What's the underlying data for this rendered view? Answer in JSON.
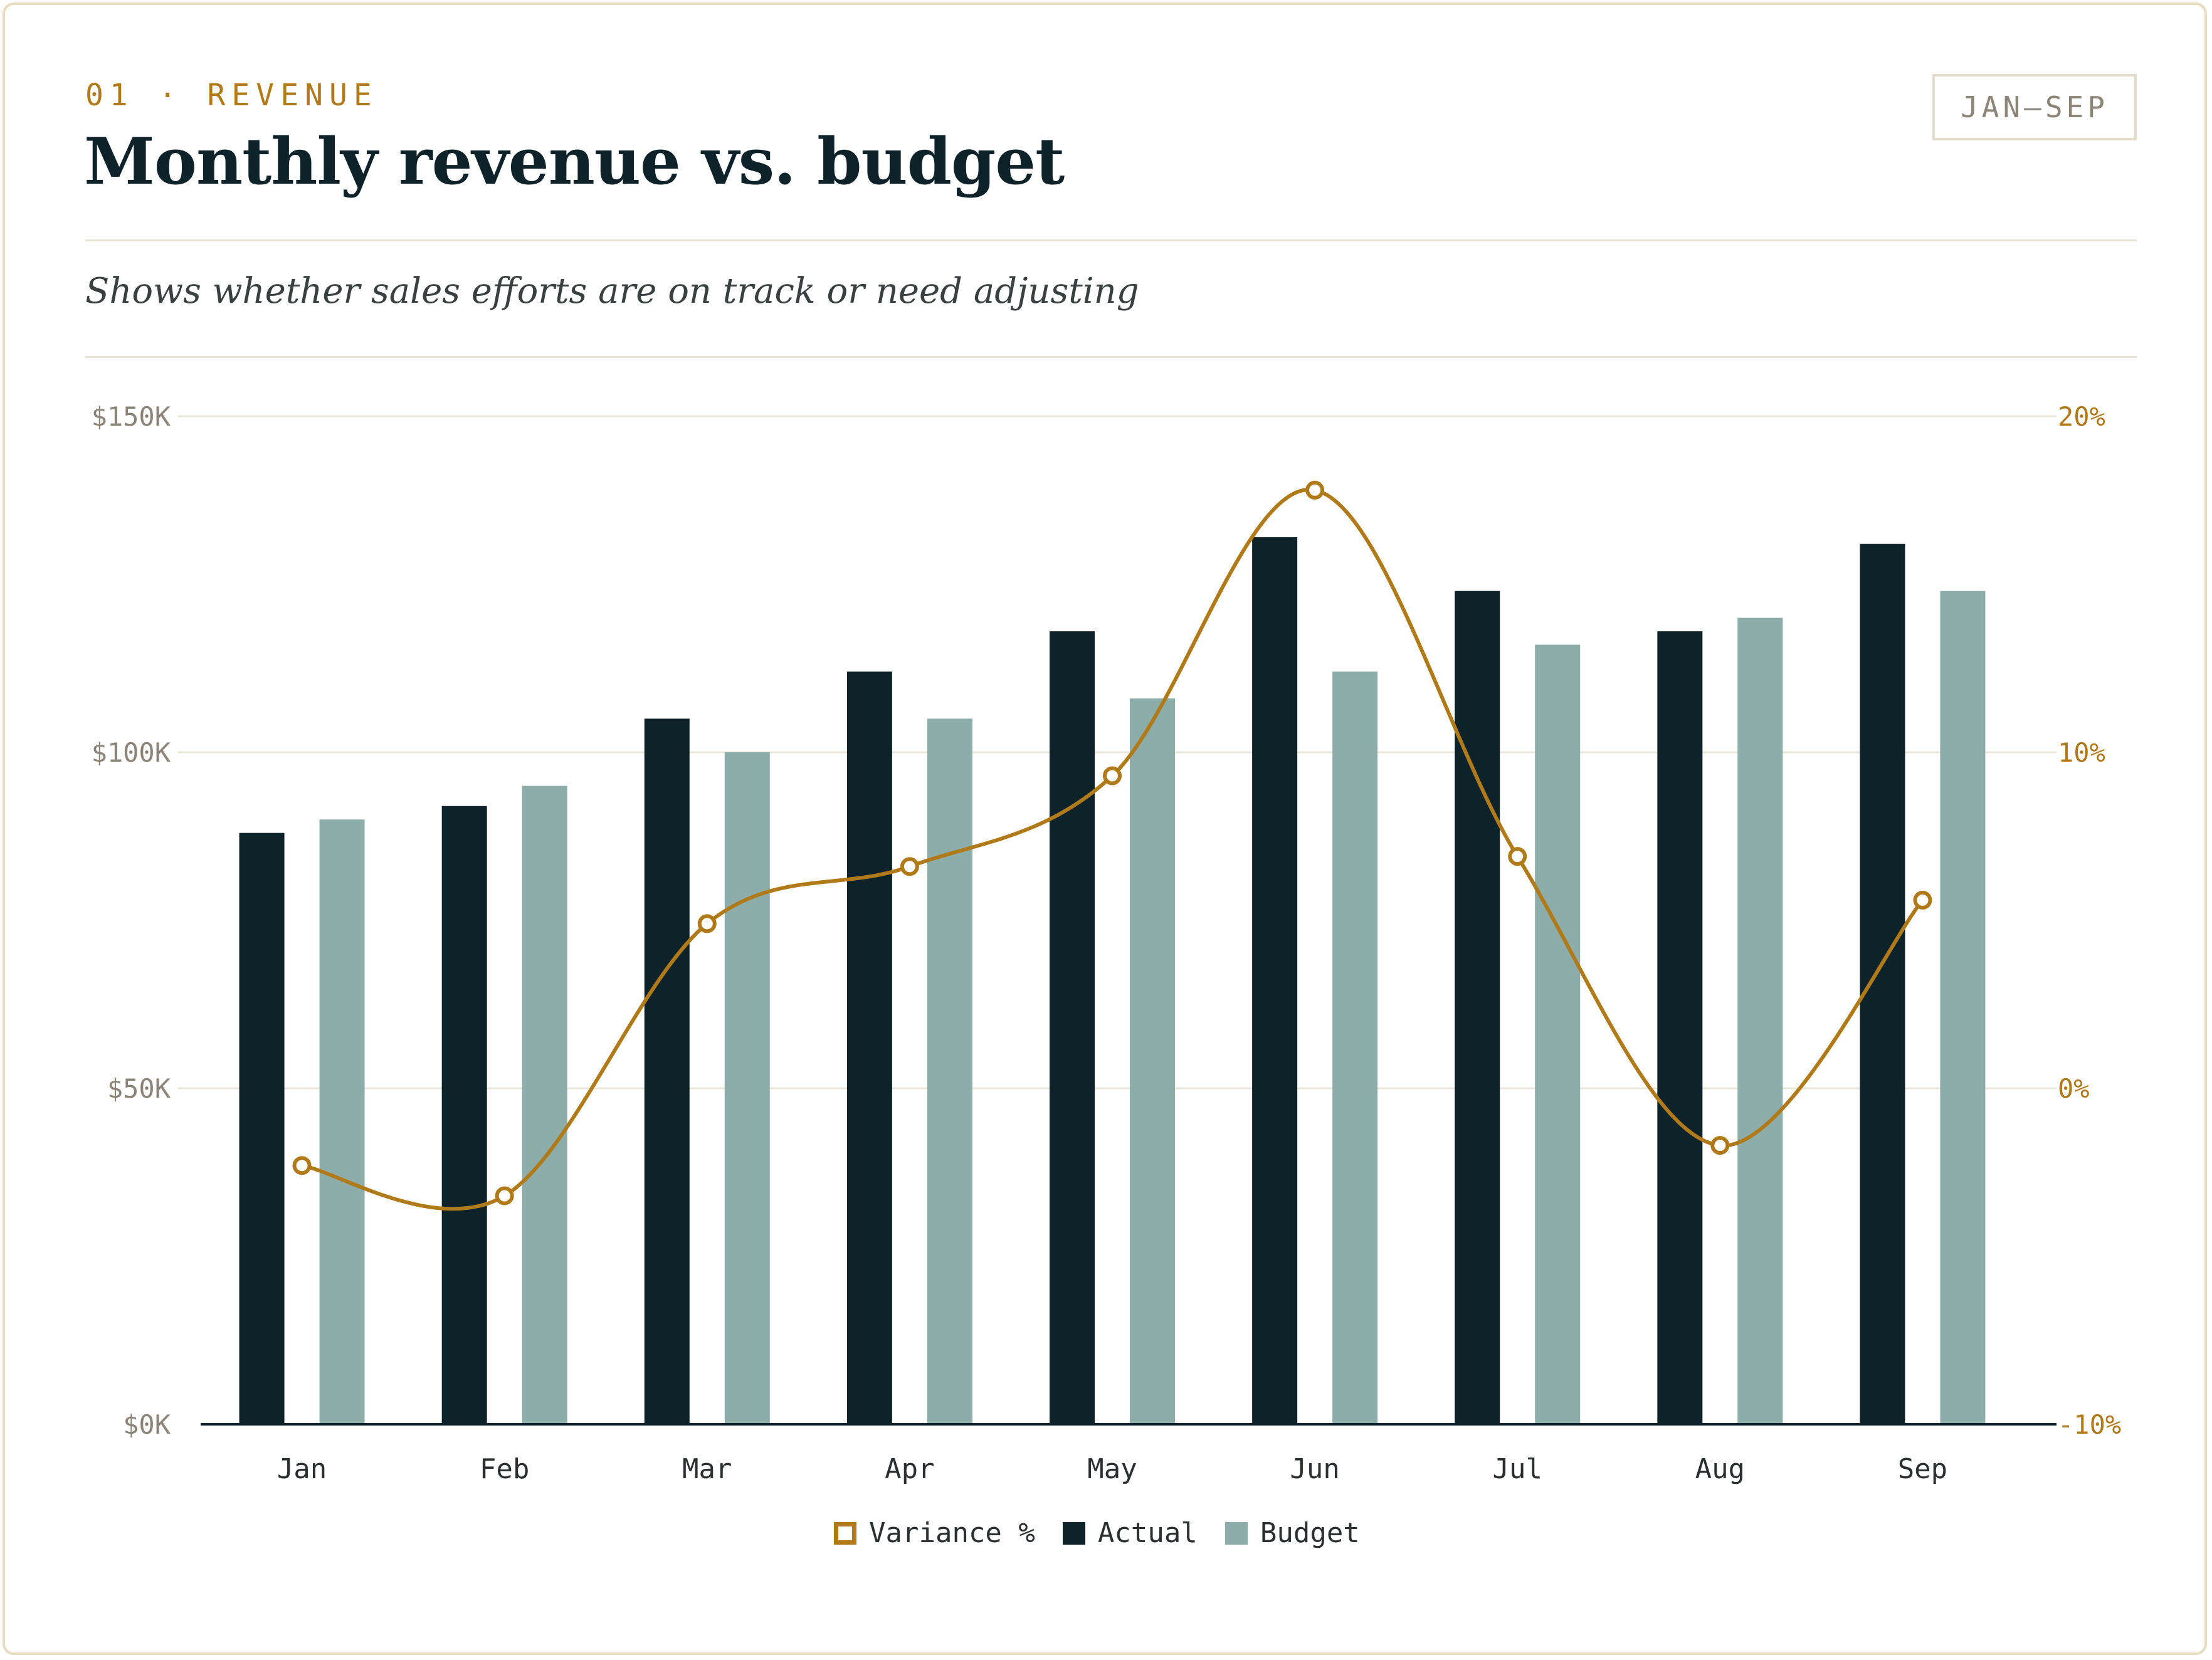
{
  "header": {
    "eyebrow": "01 · REVENUE",
    "title": "Monthly revenue vs. budget",
    "badge": "JAN–SEP",
    "subtitle": "Shows whether sales efforts are on track or need adjusting"
  },
  "legend": {
    "variance": "Variance %",
    "actual": "Actual",
    "budget": "Budget"
  },
  "colors": {
    "actual": "#0e2329",
    "budget": "#8dadaa",
    "variance": "#b07a18",
    "grid": "#e9e6d8",
    "left_axis_text": "#8a8578",
    "right_axis_text": "#b07a18"
  },
  "chart_data": {
    "type": "bar",
    "categories": [
      "Jan",
      "Feb",
      "Mar",
      "Apr",
      "May",
      "Jun",
      "Jul",
      "Aug",
      "Sep"
    ],
    "series": [
      {
        "name": "Actual",
        "type": "bar",
        "axis": "left",
        "values": [
          88,
          92,
          105,
          112,
          118,
          132,
          124,
          118,
          131
        ]
      },
      {
        "name": "Budget",
        "type": "bar",
        "axis": "left",
        "values": [
          90,
          95,
          100,
          105,
          108,
          112,
          116,
          120,
          124
        ]
      },
      {
        "name": "Variance %",
        "type": "line",
        "axis": "right",
        "values": [
          -2.3,
          -3.2,
          4.9,
          6.6,
          9.3,
          17.8,
          6.9,
          -1.7,
          5.6
        ]
      }
    ],
    "y_left": {
      "ylim": [
        0,
        150
      ],
      "ticks": [
        0,
        50,
        100,
        150
      ],
      "tick_labels": [
        "$0K",
        "$50K",
        "$100K",
        "$150K"
      ]
    },
    "y_right": {
      "ylim": [
        -10,
        20
      ],
      "ticks": [
        -10,
        0,
        10,
        20
      ],
      "tick_labels": [
        "-10%",
        "0%",
        "10%",
        "20%"
      ]
    },
    "grid": true,
    "legend_position": "bottom-center"
  }
}
